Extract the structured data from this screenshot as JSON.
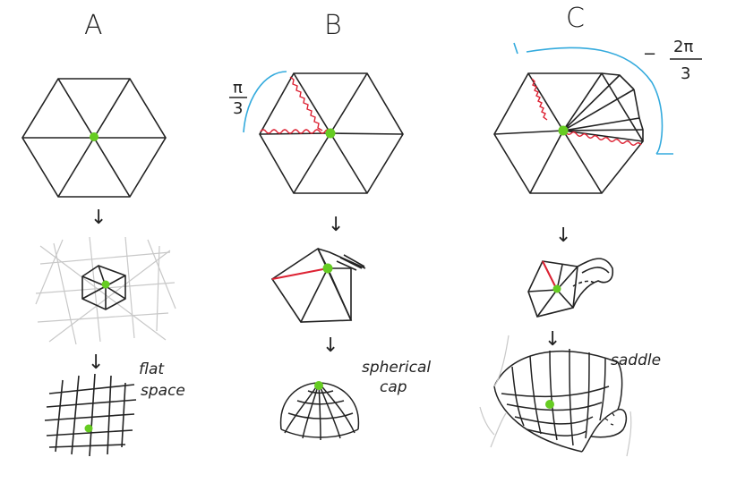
{
  "panels": [
    {
      "title": "A",
      "bottom_label_lines": [
        "flat",
        "space"
      ]
    },
    {
      "title": "B",
      "angle_num": "π",
      "angle_den": "3",
      "bottom_label_lines": [
        "spherical",
        "cap"
      ]
    },
    {
      "title": "C",
      "angle_sign": "−",
      "angle_num": "2π",
      "angle_den": "3",
      "bottom_label_lines": [
        "saddle"
      ]
    }
  ],
  "arrow_glyph": "↓",
  "colors": {
    "ink": "#222222",
    "vertex": "#66cc22",
    "cut": "#dd2233",
    "angle": "#33aadd",
    "faint": "#c8c8c8"
  }
}
